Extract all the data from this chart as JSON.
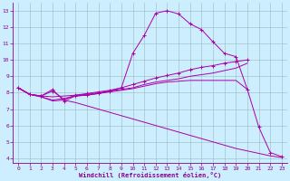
{
  "xlabel": "Windchill (Refroidissement éolien,°C)",
  "background_color": "#cceeff",
  "line_color": "#aa00aa",
  "grid_color": "#99bbbb",
  "xlim": [
    -0.5,
    23.5
  ],
  "ylim": [
    3.7,
    13.5
  ],
  "yticks": [
    4,
    5,
    6,
    7,
    8,
    9,
    10,
    11,
    12,
    13
  ],
  "xticks": [
    0,
    1,
    2,
    3,
    4,
    5,
    6,
    7,
    8,
    9,
    10,
    11,
    12,
    13,
    14,
    15,
    16,
    17,
    18,
    19,
    20,
    21,
    22,
    23
  ],
  "lines": [
    {
      "x": [
        0,
        1,
        2,
        3,
        4,
        5,
        6,
        7,
        8,
        9,
        10,
        11,
        12,
        13,
        14,
        15,
        16,
        17,
        18,
        19,
        20
      ],
      "y": [
        8.3,
        7.9,
        7.8,
        7.75,
        7.8,
        7.85,
        7.9,
        8.0,
        8.1,
        8.2,
        8.3,
        8.5,
        8.65,
        8.75,
        8.85,
        9.0,
        9.1,
        9.2,
        9.35,
        9.5,
        9.8
      ],
      "marker": false
    },
    {
      "x": [
        0,
        1,
        2,
        3,
        4,
        5,
        6,
        7,
        8,
        9,
        10,
        11,
        12,
        13,
        14,
        15,
        16,
        17,
        18,
        19,
        20
      ],
      "y": [
        8.3,
        7.9,
        7.8,
        8.1,
        7.6,
        7.85,
        7.95,
        8.05,
        8.15,
        8.3,
        8.5,
        8.7,
        8.9,
        9.05,
        9.2,
        9.4,
        9.55,
        9.65,
        9.8,
        9.9,
        10.0
      ],
      "marker": true
    },
    {
      "x": [
        0,
        1,
        2,
        3,
        4,
        5,
        6,
        7,
        8,
        9,
        10,
        11,
        12,
        13,
        14,
        15,
        16,
        17,
        18,
        19,
        20,
        21,
        22,
        23
      ],
      "y": [
        8.3,
        7.9,
        7.8,
        8.2,
        7.5,
        7.8,
        7.85,
        7.95,
        8.1,
        8.3,
        10.4,
        11.5,
        12.85,
        13.0,
        12.8,
        12.2,
        11.85,
        11.1,
        10.4,
        10.2,
        8.2,
        5.9,
        4.35,
        4.1
      ],
      "marker": true
    },
    {
      "x": [
        0,
        1,
        2,
        3,
        4,
        5,
        6,
        7,
        8,
        9,
        10,
        11,
        12,
        13,
        14,
        15,
        16,
        17,
        18,
        19,
        20
      ],
      "y": [
        8.3,
        7.9,
        7.75,
        7.55,
        7.65,
        7.8,
        7.85,
        7.95,
        8.05,
        8.15,
        8.25,
        8.4,
        8.55,
        8.65,
        8.7,
        8.75,
        8.75,
        8.75,
        8.75,
        8.75,
        8.2
      ],
      "marker": false
    },
    {
      "x": [
        0,
        1,
        2,
        3,
        4,
        5,
        6,
        7,
        8,
        9,
        10,
        11,
        12,
        13,
        14,
        15,
        16,
        17,
        18,
        19,
        20,
        21,
        22,
        23
      ],
      "y": [
        8.3,
        7.9,
        7.75,
        7.5,
        7.55,
        7.4,
        7.2,
        7.0,
        6.8,
        6.6,
        6.4,
        6.2,
        6.0,
        5.8,
        5.6,
        5.4,
        5.2,
        5.0,
        4.8,
        4.6,
        4.45,
        4.3,
        4.15,
        4.05
      ],
      "marker": false
    }
  ]
}
